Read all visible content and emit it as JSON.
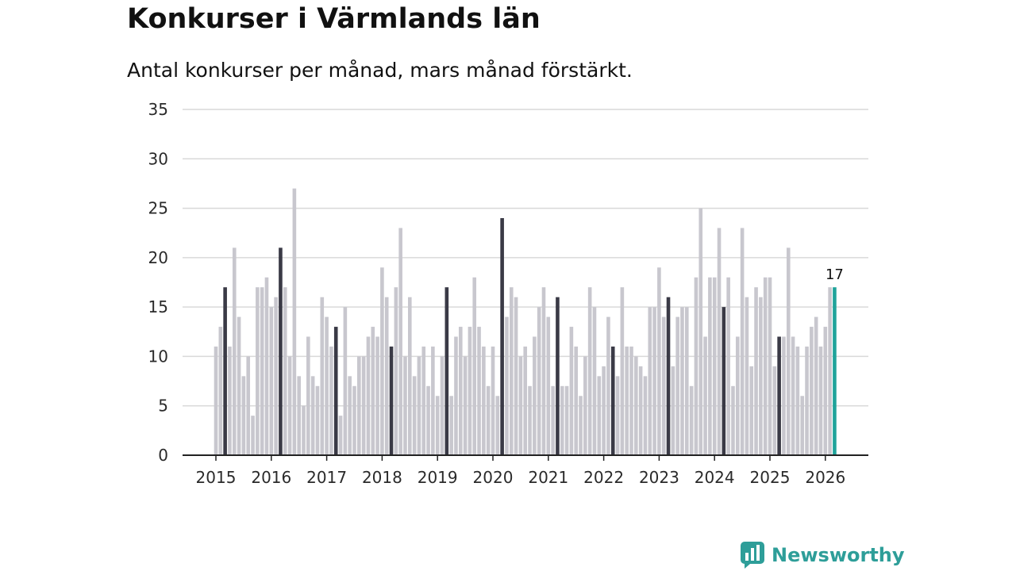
{
  "title": "Konkurser i Värmlands län",
  "subtitle": "Antal konkurser per månad, mars månad förstärkt.",
  "brand": {
    "name": "Newsworthy",
    "color": "#2e9e99"
  },
  "colors": {
    "bar": "#c8c7ce",
    "march": "#3a3a46",
    "latest": "#1fa39a",
    "grid": "#d9d9d9",
    "axis": "#222222"
  },
  "chart_data": {
    "type": "bar",
    "title": "Konkurser i Värmlands län",
    "subtitle": "Antal konkurser per månad, mars månad förstärkt.",
    "xlabel": "",
    "ylabel": "",
    "ylim": [
      0,
      35
    ],
    "yticks": [
      0,
      5,
      10,
      15,
      20,
      25,
      30,
      35
    ],
    "xtick_labels": [
      "2015",
      "2016",
      "2017",
      "2018",
      "2019",
      "2020",
      "2021",
      "2022",
      "2023",
      "2024",
      "2025",
      "2026"
    ],
    "start": "2015-01",
    "highlight_month": "March",
    "annotation": {
      "label": "17",
      "month": "2026-03"
    },
    "values": [
      11,
      13,
      17,
      11,
      21,
      14,
      8,
      10,
      4,
      17,
      17,
      18,
      15,
      16,
      21,
      17,
      10,
      27,
      8,
      5,
      12,
      8,
      7,
      16,
      14,
      11,
      13,
      4,
      15,
      8,
      7,
      10,
      10,
      12,
      13,
      12,
      19,
      16,
      11,
      17,
      23,
      10,
      16,
      8,
      10,
      11,
      7,
      11,
      6,
      10,
      17,
      6,
      12,
      13,
      10,
      13,
      18,
      13,
      11,
      7,
      11,
      6,
      24,
      14,
      17,
      16,
      10,
      11,
      7,
      12,
      15,
      17,
      14,
      7,
      16,
      7,
      7,
      13,
      11,
      6,
      10,
      17,
      15,
      8,
      9,
      14,
      11,
      8,
      17,
      11,
      11,
      10,
      9,
      8,
      15,
      15,
      19,
      14,
      16,
      9,
      14,
      15,
      15,
      7,
      18,
      25,
      12,
      18,
      18,
      23,
      15,
      18,
      7,
      12,
      23,
      16,
      9,
      17,
      16,
      18,
      18,
      9,
      12,
      12,
      21,
      12,
      11,
      6,
      11,
      13,
      14,
      11,
      13,
      17,
      17
    ]
  }
}
